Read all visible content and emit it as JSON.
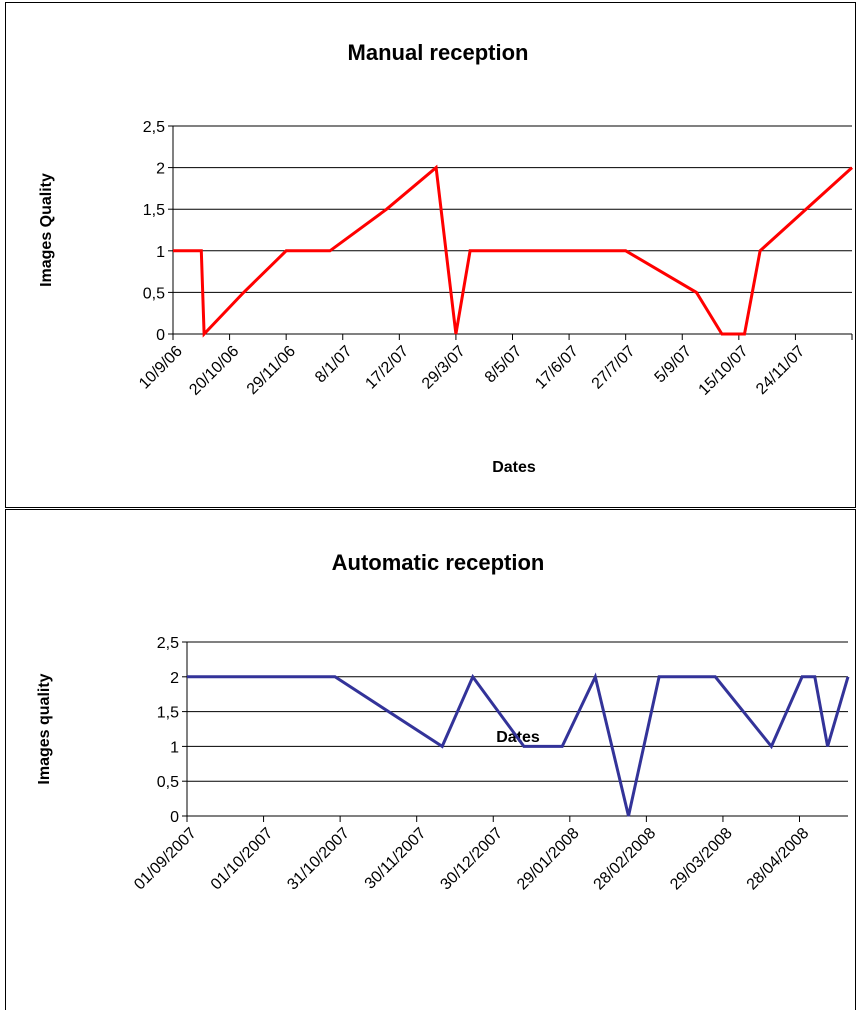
{
  "charts": [
    {
      "title": "Manual reception",
      "xlabel": "Dates",
      "ylabel": "Images Quality",
      "line_color": "#ff0000"
    },
    {
      "title": "Automatic reception",
      "xlabel": "Dates",
      "ylabel": "Images quality",
      "line_color": "#333399"
    }
  ],
  "chart_data": [
    {
      "type": "line",
      "title": "Manual reception",
      "xlabel": "Dates",
      "ylabel": "Images Quality",
      "ylim": [
        0,
        2.5
      ],
      "y_ticks": [
        "0",
        "0,5",
        "1",
        "1,5",
        "2",
        "2,5"
      ],
      "x_tick_labels": [
        "10/9/06",
        "20/10/06",
        "29/11/06",
        "8/1/07",
        "17/2/07",
        "29/3/07",
        "8/5/07",
        "17/6/07",
        "27/7/07",
        "5/9/07",
        "15/10/07",
        "24/11/07"
      ],
      "grid": "horizontal",
      "x": [
        "10/9/06",
        "30/9/06",
        "2/10/06",
        "30/10/06",
        "29/11/06",
        "30/12/06",
        "8/2/07",
        "15/3/07",
        "29/3/07",
        "8/4/07",
        "1/6/07",
        "27/7/07",
        "15/9/07",
        "3/10/07",
        "19/10/07",
        "30/10/07",
        "3/1/08"
      ],
      "series": [
        {
          "values": [
            1,
            1,
            0,
            0.5,
            1,
            1,
            1.5,
            2,
            0,
            1,
            1,
            1,
            0.5,
            0,
            0,
            1,
            2
          ]
        }
      ]
    },
    {
      "type": "line",
      "title": "Automatic reception",
      "xlabel": "Dates",
      "ylabel": "Images quality",
      "ylim": [
        0,
        2.5
      ],
      "y_ticks": [
        "0",
        "0,5",
        "1",
        "1,5",
        "2",
        "2,5"
      ],
      "x_tick_labels": [
        "01/09/2007",
        "01/10/2007",
        "31/10/2007",
        "30/11/2007",
        "30/12/2007",
        "29/01/2008",
        "28/02/2008",
        "29/03/2008",
        "28/04/2008"
      ],
      "grid": "horizontal",
      "x": [
        "01/09/2007",
        "29/10/2007",
        "10/12/2007",
        "22/12/2007",
        "11/01/2008",
        "26/01/2008",
        "08/02/2008",
        "21/02/2008",
        "04/03/2008",
        "26/03/2008",
        "17/04/2008",
        "29/04/2008",
        "04/05/2008",
        "09/05/2008",
        "17/05/2008"
      ],
      "series": [
        {
          "values": [
            2,
            2,
            1,
            2,
            1,
            1,
            2,
            0,
            2,
            2,
            1,
            2,
            2,
            1,
            2
          ]
        }
      ]
    }
  ]
}
